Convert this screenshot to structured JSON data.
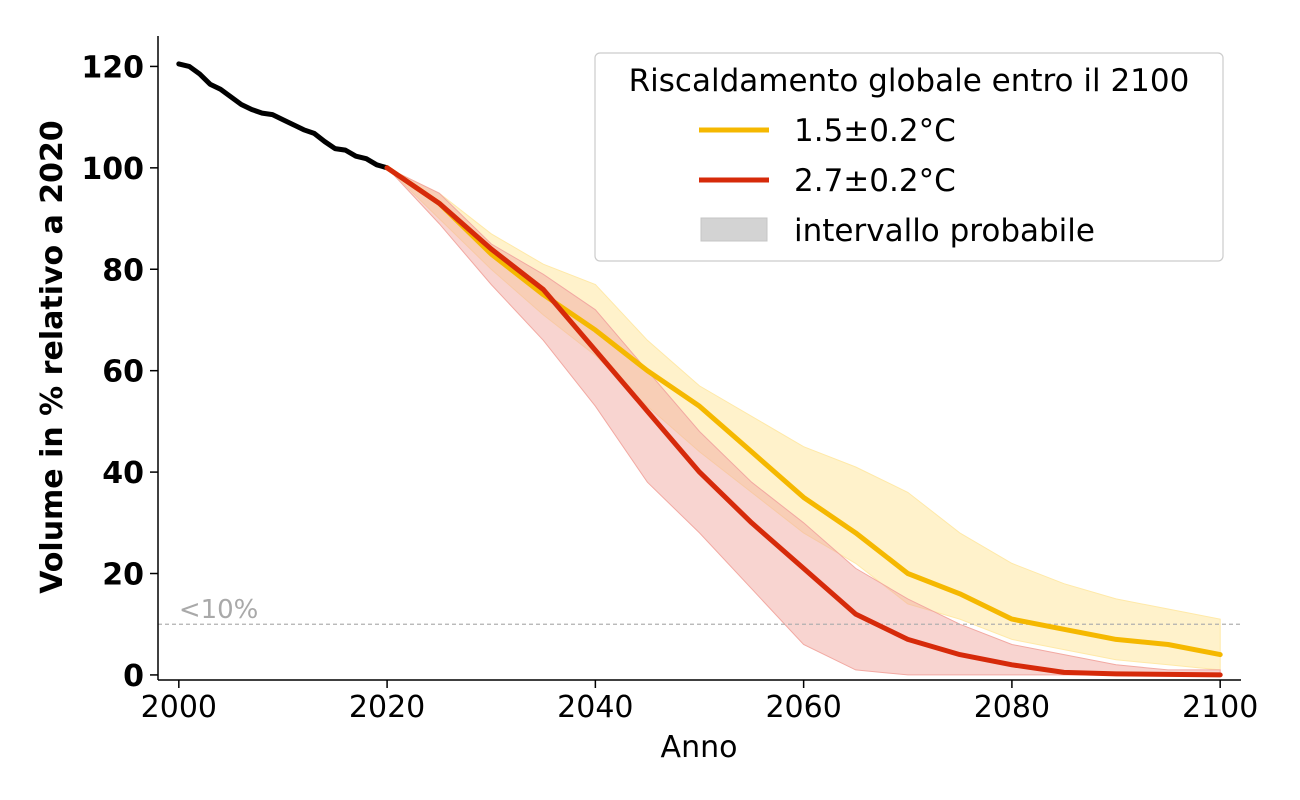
{
  "chart_data": {
    "type": "line",
    "title": "",
    "xlabel": "Anno",
    "ylabel": "Volume in % relativo a 2020",
    "xlim": [
      1998,
      2102
    ],
    "ylim": [
      -1,
      126
    ],
    "x_ticks": [
      2000,
      2020,
      2040,
      2060,
      2080,
      2100
    ],
    "y_ticks": [
      0,
      20,
      40,
      60,
      80,
      100,
      120
    ],
    "grid": false,
    "legend": {
      "title": "Riscaldamento globale entro il 2100",
      "position": "top-right",
      "entries": [
        "1.5±0.2°C",
        "2.7±0.2°C",
        "intervallo probabile"
      ]
    },
    "threshold": {
      "label": "<10%",
      "value": 10,
      "color": "#b0b0b0"
    },
    "historical": {
      "color": "#000000",
      "x": [
        2000,
        2001,
        2002,
        2003,
        2004,
        2005,
        2006,
        2007,
        2008,
        2009,
        2010,
        2011,
        2012,
        2013,
        2014,
        2015,
        2016,
        2017,
        2018,
        2019,
        2020
      ],
      "y": [
        120.5,
        120,
        118.5,
        116.5,
        115.5,
        114,
        112.5,
        111.5,
        110.8,
        110.5,
        109.5,
        108.5,
        107.5,
        106.8,
        105.2,
        103.8,
        103.5,
        102.3,
        101.8,
        100.6,
        100
      ]
    },
    "series": [
      {
        "name": "1.5±0.2°C",
        "color": "#f5b800",
        "band_color": "#ffe9a8",
        "x": [
          2020,
          2025,
          2030,
          2035,
          2040,
          2045,
          2050,
          2055,
          2060,
          2065,
          2070,
          2075,
          2080,
          2085,
          2090,
          2095,
          2100
        ],
        "y": [
          100,
          93,
          83,
          75,
          68,
          60,
          53,
          44,
          35,
          28,
          20,
          16,
          11,
          9,
          7,
          6,
          4
        ],
        "lower": [
          100,
          90,
          80,
          71,
          63,
          53,
          44,
          36,
          28,
          22,
          14,
          11,
          7,
          5,
          3,
          2,
          1
        ],
        "upper": [
          100,
          95,
          87,
          81,
          77,
          66,
          57,
          51,
          45,
          41,
          36,
          28,
          22,
          18,
          15,
          13,
          11
        ]
      },
      {
        "name": "2.7±0.2°C",
        "color": "#d62a0a",
        "band_color": "#f2a9a2",
        "x": [
          2020,
          2025,
          2030,
          2035,
          2040,
          2045,
          2050,
          2055,
          2060,
          2065,
          2070,
          2075,
          2080,
          2085,
          2090,
          2095,
          2100
        ],
        "y": [
          100,
          93,
          84,
          76,
          64,
          52,
          40,
          30,
          21,
          12,
          7,
          4,
          2,
          0.5,
          0.2,
          0.1,
          0
        ],
        "lower": [
          100,
          89,
          77,
          66,
          53,
          38,
          28,
          17,
          6,
          1,
          0,
          0,
          0,
          0,
          0,
          0,
          0
        ],
        "upper": [
          100,
          95,
          85,
          79,
          72,
          60,
          48,
          38,
          30,
          21,
          15,
          10,
          6,
          4,
          2,
          1,
          1
        ]
      }
    ]
  }
}
